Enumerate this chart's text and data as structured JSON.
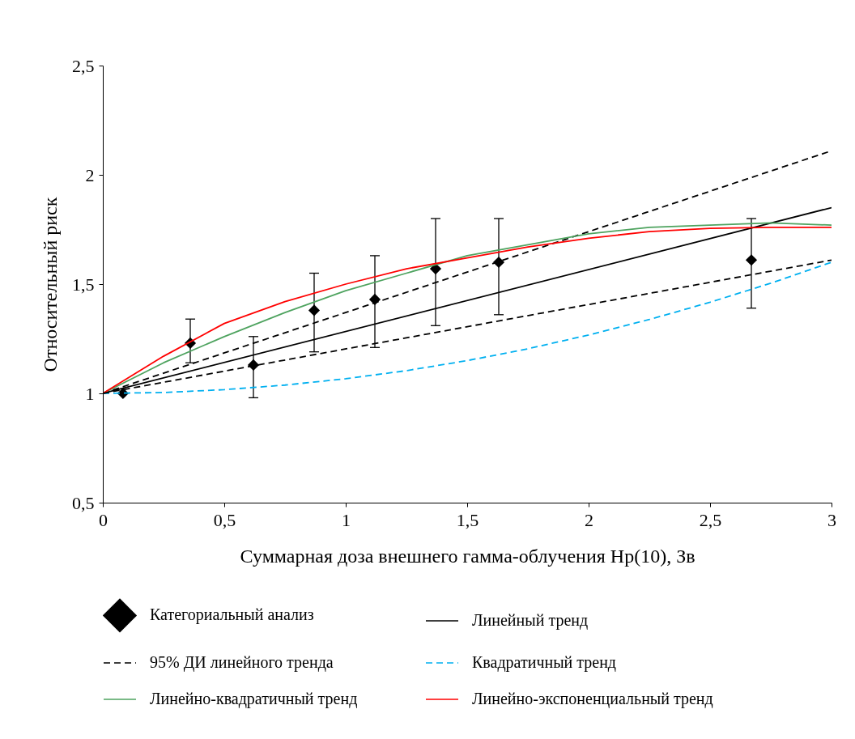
{
  "chart_data": {
    "type": "scatter",
    "xlabel": "Суммарная доза внешнего гамма-облучения Hp(10), Зв",
    "ylabel": "Относительный риск",
    "xlim": [
      0,
      3
    ],
    "ylim": [
      0.5,
      2.5
    ],
    "xticks": [
      0,
      {
        "value": 0.5,
        "label": "0,5"
      },
      1,
      {
        "value": 1.5,
        "label": "1,5"
      },
      2,
      {
        "value": 2.5,
        "label": "2,5"
      },
      3
    ],
    "yticks": [
      {
        "value": 0.5,
        "label": "0,5"
      },
      {
        "value": 1,
        "label": "1"
      },
      {
        "value": 1.5,
        "label": "1,5"
      },
      {
        "value": 2,
        "label": "2"
      },
      {
        "value": 2.5,
        "label": "2,5"
      }
    ],
    "grid": false,
    "legend": "bottom",
    "series": [
      {
        "name": "Категориальный анализ",
        "marker": "diamond",
        "color": "#000000",
        "x": [
          0.083,
          0.36,
          0.62,
          0.87,
          1.12,
          1.37,
          1.63,
          2.67
        ],
        "values": [
          1.0,
          1.23,
          1.13,
          1.38,
          1.43,
          1.57,
          1.6,
          1.61
        ],
        "errors": [
          null,
          [
            1.14,
            1.34
          ],
          [
            0.98,
            1.26
          ],
          [
            1.19,
            1.55
          ],
          [
            1.21,
            1.63
          ],
          [
            1.31,
            1.8
          ],
          [
            1.36,
            1.8
          ],
          [
            1.39,
            1.8
          ]
        ]
      },
      {
        "name": "Линейный тренд",
        "type": "line",
        "color": "#000000",
        "line_style": "solid",
        "x": [
          0,
          3
        ],
        "values": [
          1,
          1.85
        ]
      },
      {
        "name": "95% ДИ линейного тренда",
        "type": "line",
        "color": "#000000",
        "line_style": "dashed",
        "x": [
          0,
          3
        ],
        "values": [
          1,
          2.11
        ]
      },
      {
        "name": "Квадратичный тренд",
        "type": "line",
        "color": "#00b0f0",
        "line_style": "dashed",
        "x": [
          0,
          0.25,
          0.5,
          0.75,
          1,
          1.25,
          1.5,
          1.75,
          2,
          2.25,
          2.5,
          2.75,
          3
        ],
        "values": [
          1,
          1.004,
          1.017,
          1.038,
          1.067,
          1.104,
          1.15,
          1.204,
          1.267,
          1.338,
          1.417,
          1.504,
          1.6
        ]
      },
      {
        "name": "Линейно-квадратичный тренд",
        "type": "line",
        "color": "#4ea35f",
        "line_style": "solid",
        "x": [
          0,
          0.25,
          0.5,
          0.75,
          1,
          1.25,
          1.5,
          1.75,
          2,
          2.25,
          2.5,
          2.75,
          3
        ],
        "values": [
          1,
          1.14,
          1.26,
          1.37,
          1.47,
          1.55,
          1.63,
          1.68,
          1.73,
          1.76,
          1.77,
          1.78,
          1.77
        ]
      },
      {
        "name": "Линейно-экспоненциальный тренд",
        "type": "line",
        "color": "#ff0000",
        "line_style": "solid",
        "x": [
          0,
          0.25,
          0.5,
          0.75,
          1,
          1.25,
          1.5,
          1.75,
          2,
          2.25,
          2.5,
          2.75,
          3
        ],
        "values": [
          1,
          1.17,
          1.32,
          1.42,
          1.5,
          1.57,
          1.62,
          1.67,
          1.71,
          1.74,
          1.755,
          1.76,
          1.76
        ]
      },
      {
        "type": "line",
        "color": "#000000",
        "line_style": "dashed",
        "x": [
          0,
          3
        ],
        "values": [
          1,
          1.61
        ]
      }
    ]
  }
}
